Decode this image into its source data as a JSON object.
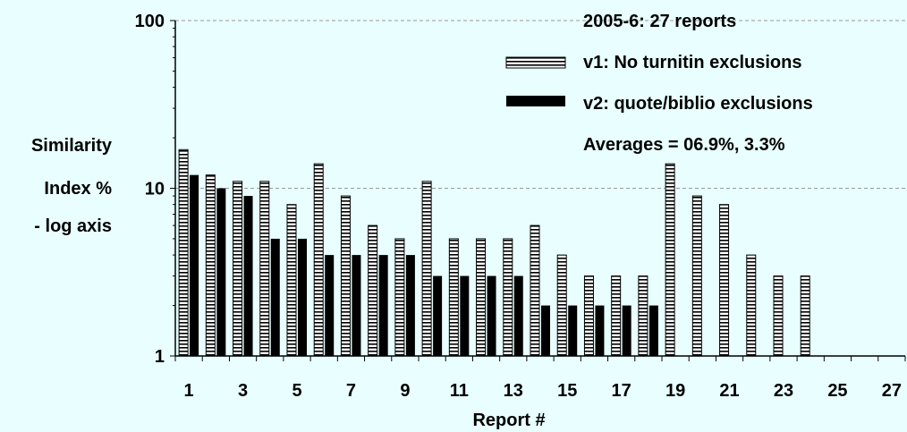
{
  "chart_data": {
    "type": "bar",
    "title": "",
    "xlabel": "Report #",
    "ylabel_lines": [
      "Similarity",
      "Index %",
      "- log axis"
    ],
    "y_scale": "log",
    "ylim": [
      1,
      100
    ],
    "y_ticks": [
      {
        "value": 1,
        "label": "1"
      },
      {
        "value": 10,
        "label": "10"
      },
      {
        "value": 100,
        "label": "100"
      }
    ],
    "categories": [
      1,
      2,
      3,
      4,
      5,
      6,
      7,
      8,
      9,
      10,
      11,
      12,
      13,
      14,
      15,
      16,
      17,
      18,
      19,
      20,
      21,
      22,
      23,
      24,
      25,
      26,
      27
    ],
    "x_tick_labels": [
      "1",
      "3",
      "5",
      "7",
      "9",
      "11",
      "13",
      "15",
      "17",
      "19",
      "21",
      "23",
      "25",
      "27"
    ],
    "series": [
      {
        "name": "v1: No turnitin exclusions",
        "pattern": "horizontal-stripes",
        "values": [
          17,
          12,
          11,
          11,
          8,
          14,
          9,
          6,
          5,
          11,
          5,
          5,
          5,
          6,
          4,
          3,
          3,
          3,
          14,
          9,
          8,
          4,
          3,
          3,
          null,
          null,
          null
        ]
      },
      {
        "name": "v2: quote/biblio exclusions",
        "pattern": "solid-black",
        "values": [
          12,
          10,
          9,
          5,
          5,
          4,
          4,
          4,
          4,
          3,
          3,
          3,
          3,
          2,
          2,
          2,
          2,
          2,
          null,
          null,
          null,
          null,
          null,
          null,
          null,
          null,
          null
        ]
      }
    ],
    "annotations": [
      "2005-6: 27 reports",
      "Averages = 06.9%, 3.3%"
    ],
    "grid": "dashed at 10 and 100",
    "legend": "top-right"
  }
}
